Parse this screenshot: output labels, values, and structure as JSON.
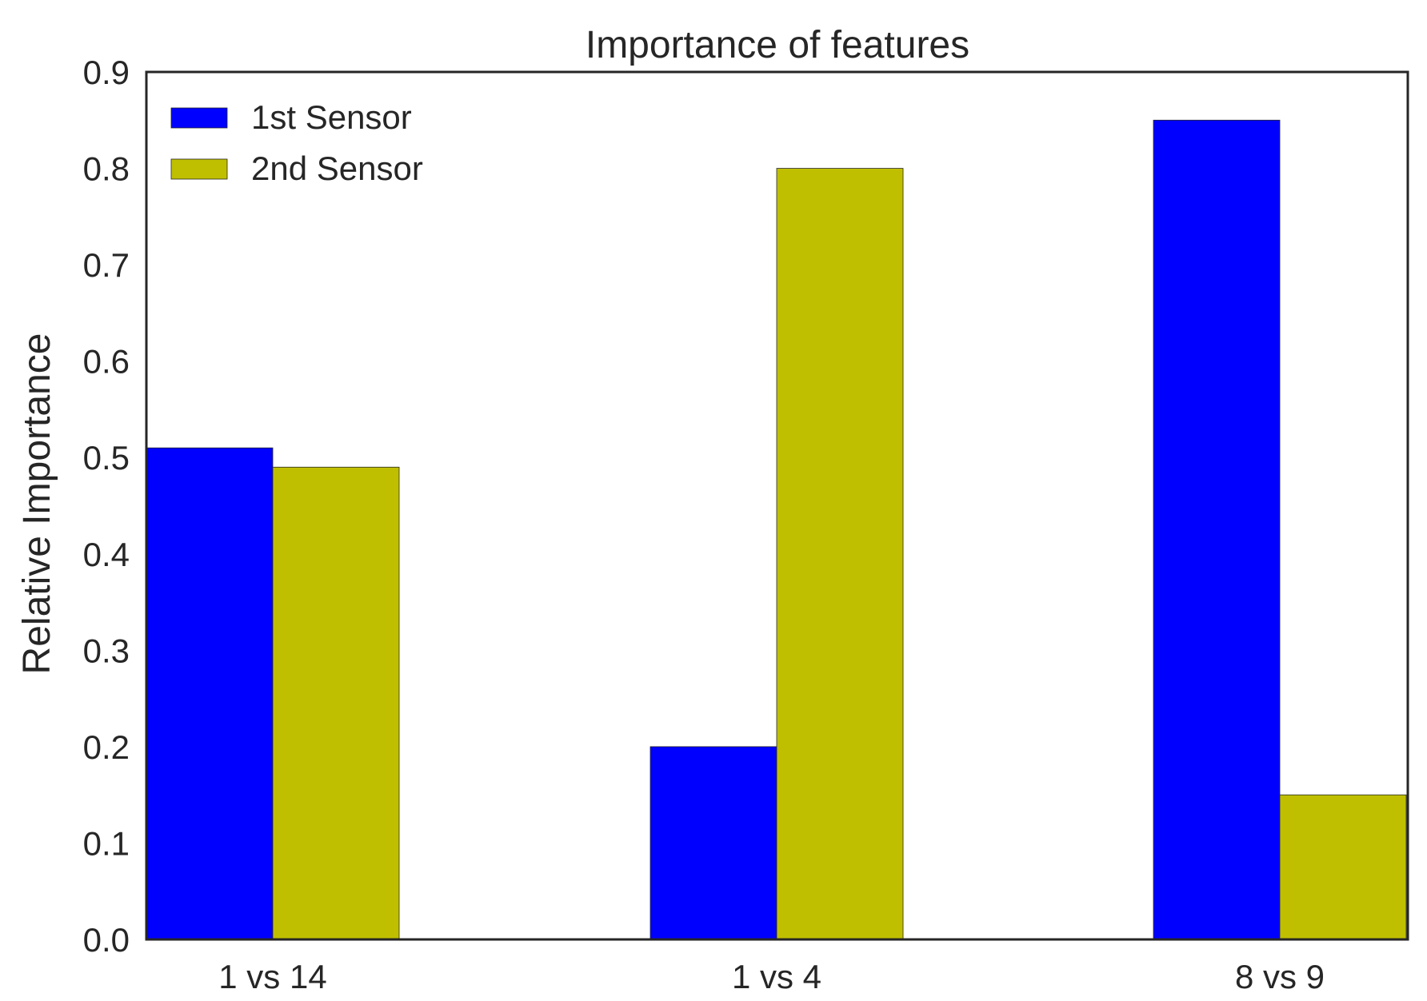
{
  "chart_data": {
    "type": "bar",
    "title": "Importance of features",
    "xlabel": "",
    "ylabel": "Relative Importance",
    "categories": [
      "1 vs 14",
      "1 vs 4",
      "8 vs 9"
    ],
    "series": [
      {
        "name": "1st Sensor",
        "values": [
          0.51,
          0.2,
          0.85
        ],
        "color": "#0000ff"
      },
      {
        "name": "2nd Sensor",
        "values": [
          0.49,
          0.8,
          0.15
        ],
        "color": "#bfbf00"
      }
    ],
    "ylim": [
      0.0,
      0.9
    ],
    "yticks": [
      "0.0",
      "0.1",
      "0.2",
      "0.3",
      "0.4",
      "0.5",
      "0.6",
      "0.7",
      "0.8",
      "0.9"
    ],
    "grid": false,
    "legend_position": "top-left"
  }
}
